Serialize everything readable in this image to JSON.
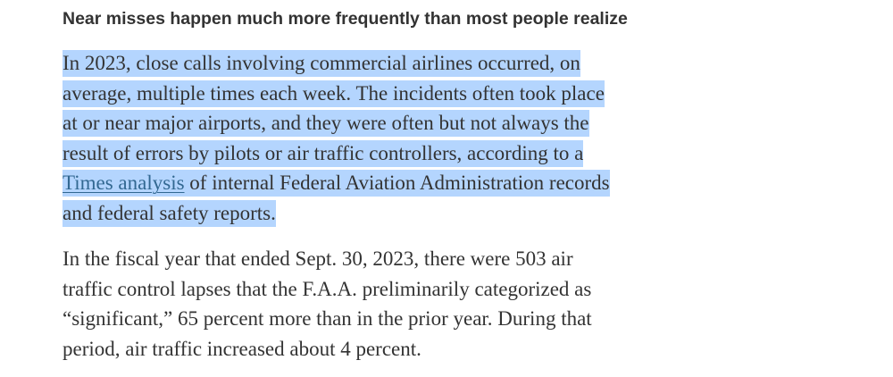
{
  "subheading": "Near misses happen much more frequently than most people realize",
  "paragraph1": {
    "line1": "In 2023, close calls involving commercial airlines occurred, on",
    "line2": "average, multiple times each week. The incidents often took place",
    "line3": "at or near major airports, and they were often but not always the",
    "line4": "result of errors by pilots or air traffic controllers, according to a",
    "line5_link": "Times analysis",
    "line5_rest": " of internal Federal Aviation Administration records",
    "line6": "and federal safety reports."
  },
  "paragraph2": {
    "line1": "In the fiscal year that ended Sept. 30, 2023, there were 503 air",
    "line2": "traffic control lapses that the F.A.A. preliminarily categorized as",
    "line3": "“significant,” 65 percent more than in the prior year. During that",
    "line4": "period, air traffic increased about 4 percent."
  },
  "colors": {
    "text": "#333333",
    "selection": "#b4d5fe",
    "link": "#326891"
  }
}
